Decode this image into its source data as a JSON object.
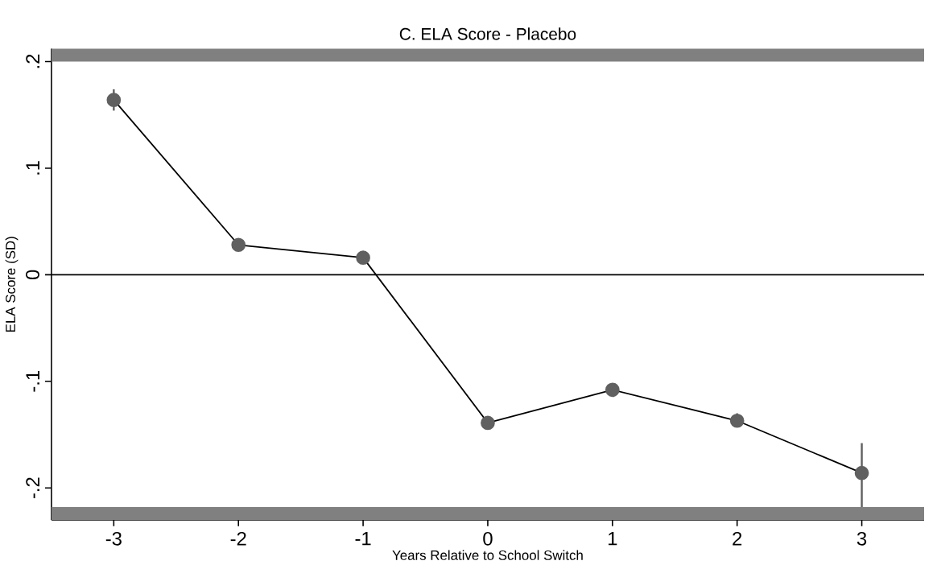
{
  "chart_data": {
    "type": "line",
    "title": "C. ELA Score - Placebo",
    "xlabel": "Years Relative to School Switch",
    "ylabel": "ELA Score (SD)",
    "x": [
      -3,
      -2,
      -1,
      0,
      1,
      2,
      3
    ],
    "series": [
      {
        "color": "#606060",
        "values": [
          0.164,
          0.028,
          0.016,
          -0.139,
          -0.108,
          -0.137,
          -0.186
        ],
        "errors": [
          [
            0.154,
            0.174
          ],
          null,
          null,
          null,
          null,
          [
            -0.143,
            -0.13
          ],
          [
            -0.218,
            -0.158
          ]
        ]
      }
    ],
    "xlim": [
      -3.5,
      3.5
    ],
    "xticks": [
      -3,
      -2,
      -1,
      0,
      1,
      2,
      3
    ],
    "ylim": [
      -0.23,
      0.212
    ],
    "yticks": [
      {
        "value": -0.2,
        "label": "-.2"
      },
      {
        "value": -0.1,
        "label": "-.1"
      },
      {
        "value": 0,
        "label": "0"
      },
      {
        "value": 0.1,
        "label": ".1"
      },
      {
        "value": 0.2,
        "label": ".2"
      }
    ],
    "ref_lines": [
      {
        "axis": "y",
        "value": 0,
        "color": "#000000"
      }
    ],
    "bands": [
      {
        "axis": "y",
        "from": 0.2,
        "to": 0.212,
        "color": "#808080"
      },
      {
        "axis": "y",
        "from": -0.23,
        "to": -0.218,
        "color": "#808080"
      }
    ],
    "marker": "circle",
    "line_style": "solid"
  }
}
